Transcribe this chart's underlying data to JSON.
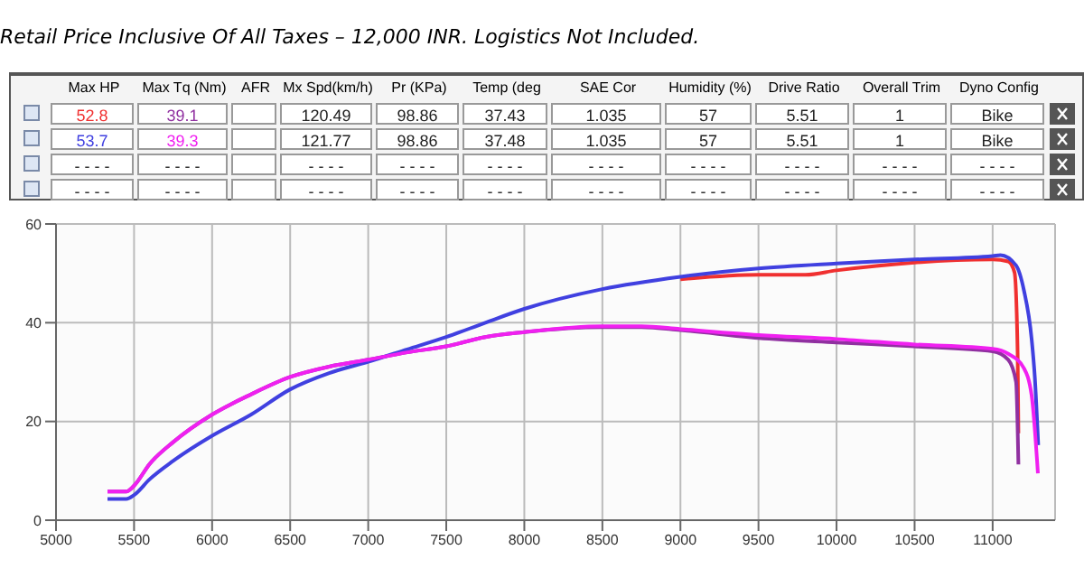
{
  "chart_data": {
    "type": "line",
    "title": "Retail Price Inclusive Of All Taxes – 12,000 INR. Logistics Not Included.",
    "annotations": [
      "Max HP",
      "Max Tq (Nm)",
      "AFR",
      "Mx Spd(km/h)",
      "Pr (KPa)",
      "Temp (deg",
      "SAE Cor",
      "Humidity (%)",
      "Drive Ratio",
      "Overall Trim",
      "Dyno Config",
      "52.8",
      "39.1",
      "120.49",
      "98.86",
      "37.43",
      "1.035",
      "57",
      "5.51",
      "1",
      "Bike",
      "53.7",
      "39.3",
      "121.77",
      "98.86",
      "37.48",
      "1.035",
      "57",
      "5.51",
      "1",
      "Bike",
      "- - - -",
      "- - - -",
      "- - - -",
      "- - - -",
      "- - - -",
      "- - - -",
      "- - - -",
      "- - - -",
      "- - - -",
      "- - - -",
      "- - - -",
      "- - - -",
      "- - - -",
      "- - - -",
      "- - - -",
      "- - - -",
      "- - - -",
      "- - - -",
      "- - - -",
      "- - - -"
    ],
    "xlim": [
      5000,
      11400
    ],
    "xticks": [
      5000,
      5500,
      6000,
      6500,
      7000,
      7500,
      8000,
      8500,
      9000,
      9500,
      10000,
      10500,
      11000
    ],
    "ylim": [
      0,
      60
    ],
    "yticks": [
      0,
      20,
      40,
      60
    ],
    "grid": true,
    "series": [
      {
        "color": "#f03030",
        "x": [
          9000,
          9500,
          9800,
          10000,
          10500,
          11000,
          11100,
          11140,
          11160,
          11165
        ],
        "values": [
          48.8,
          49.7,
          49.7,
          50.6,
          52.2,
          52.8,
          52.4,
          50.2,
          33.9,
          17.6
        ]
      },
      {
        "color": "#9030a0",
        "x": [
          5330,
          5450,
          5500,
          5600,
          5750,
          6000,
          6250,
          6500,
          6750,
          7000,
          7250,
          7500,
          7750,
          8000,
          8500,
          8750,
          9000,
          9500,
          10000,
          10500,
          11000,
          11100,
          11150,
          11165
        ],
        "values": [
          5.8,
          5.8,
          7.0,
          11.4,
          15.8,
          21.4,
          25.5,
          29.0,
          31.1,
          32.5,
          34.0,
          35.2,
          37.1,
          38.1,
          39.1,
          39.1,
          38.5,
          36.9,
          36.0,
          35.2,
          34.2,
          32.5,
          28.0,
          11.3
        ]
      },
      {
        "color": "#4040e0",
        "x": [
          5330,
          5450,
          5500,
          5600,
          5750,
          6000,
          6250,
          6500,
          6750,
          7000,
          7250,
          7500,
          7750,
          8000,
          8500,
          9000,
          9500,
          10000,
          10500,
          11000,
          11050,
          11150,
          11200,
          11250,
          11270,
          11292
        ],
        "values": [
          4.3,
          4.3,
          5.1,
          8.3,
          12.0,
          17.1,
          21.4,
          26.5,
          29.8,
          32.1,
          34.6,
          37.1,
          40.0,
          42.8,
          46.8,
          49.3,
          51.0,
          52.0,
          52.8,
          53.5,
          53.7,
          51.6,
          46.6,
          36.6,
          29.0,
          15.2
        ]
      },
      {
        "color": "#f020f0",
        "x": [
          5330,
          5450,
          5500,
          5600,
          5750,
          6000,
          6250,
          6500,
          6750,
          7000,
          7250,
          7500,
          7750,
          8000,
          8500,
          8750,
          9000,
          9500,
          10000,
          10500,
          11000,
          11100,
          11200,
          11250,
          11290
        ],
        "values": [
          5.8,
          5.8,
          7.0,
          11.4,
          15.8,
          21.4,
          25.5,
          29.0,
          31.1,
          32.5,
          34.0,
          35.2,
          37.1,
          38.1,
          39.3,
          39.3,
          38.7,
          37.5,
          36.7,
          35.6,
          34.7,
          33.7,
          30.8,
          25.2,
          9.5
        ]
      }
    ]
  }
}
